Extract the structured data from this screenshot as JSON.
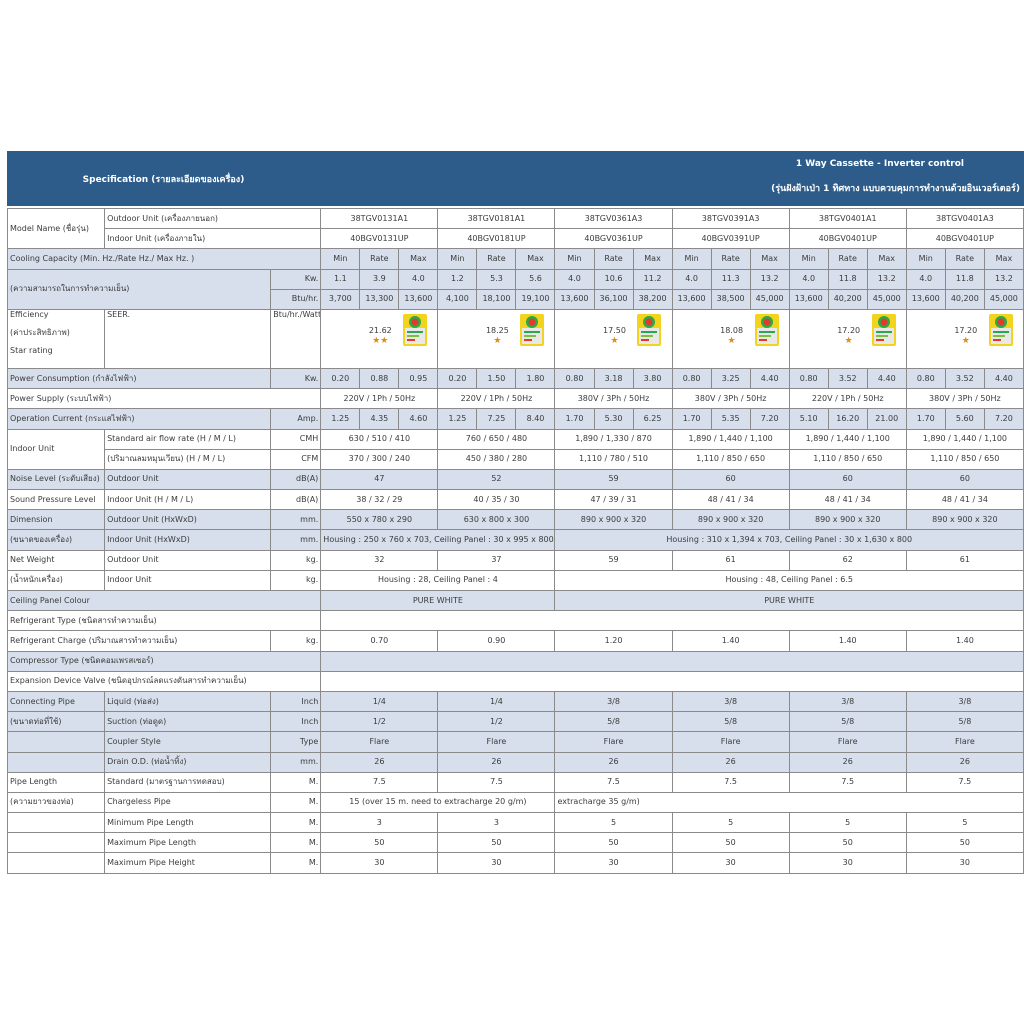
{
  "header": {
    "left": "Specification (รายละเอียดของเครื่อง)",
    "right_title": "1 Way Cassette - Inverter control",
    "right_subtitle": "(รุ่นฝังฝ้าเป่า 1 ทิศทาง แบบควบคุมการทำงานด้วยอินเวอร์เตอร์)"
  },
  "labels": {
    "model_name": "Model Name (ชื่อรุ่น)",
    "outdoor_unit_th": "Outdoor Unit (เครื่องภายนอก)",
    "indoor_unit_th": "Indoor Unit (เครื่องภายใน)",
    "cooling_capacity": "Cooling Capacity (Min. Hz./Rate Hz./ Max Hz. )",
    "cooling_capacity_th": "(ความสามารถในการทำความเย็น)",
    "kw": "Kw.",
    "btu": "Btu/hr.",
    "efficiency": "Efficiency",
    "efficiency_th": "(ค่าประสิทธิภาพ)",
    "star_rating": "Star rating",
    "seer": "SEER.",
    "btu_watt": "Btu/hr./Watt",
    "power_consumption": "Power Consumption (กำลังไฟฟ้า)",
    "power_supply": "Power Supply (ระบบไฟฟ้า)",
    "operation_current": "Operation Current (กระแสไฟฟ้า)",
    "amp": "Amp.",
    "indoor_unit": "Indoor Unit",
    "std_air_flow": "Standard air flow rate  (H / M / L)",
    "air_flow_th": "(ปริมาณลมหมุนเวียน) (H / M / L)",
    "cmh": "CMH",
    "cfm": "CFM",
    "noise_level": "Noise Level (ระดับเสียง)",
    "outdoor_unit": "Outdoor Unit",
    "dba": "dB(A)",
    "sound_pressure": "Sound Pressure Level",
    "indoor_hml": "Indoor Unit (H / M / L)",
    "dimension": "Dimension",
    "dimension_th": "(ขนาดของเครื่อง)",
    "outdoor_hxwxd": "Outdoor Unit (HxWxD)",
    "indoor_hxwxd": "Indoor Unit (HxWxD)",
    "mm": "mm.",
    "net_weight": "Net Weight",
    "net_weight_th": "(น้ำหนักเครื่อง)",
    "kg": "kg.",
    "ceiling_panel": "Ceiling Panel Colour",
    "refrigerant_type": "Refrigerant Type (ชนิดสารทำความเย็น)",
    "refrigerant_charge": "Refrigerant  Charge (ปริมาณสารทำความเย็น)",
    "compressor_type": "Compressor Type (ชนิดคอมเพรสเซอร์)",
    "expansion_valve": "Expansion Device Valve (ชนิดอุปกรณ์ลดแรงดันสารทำความเย็น)",
    "connecting_pipe": "Connecting Pipe",
    "connecting_pipe_th": "(ขนาดท่อที่ใช้)",
    "liquid": "Liquid (ท่อส่ง)",
    "suction": "Suction (ท่อดูด)",
    "coupler": "Coupler Style",
    "drain": "Drain O.D. (ท่อน้ำทิ้ง)",
    "inch": "Inch",
    "type": "Type",
    "pipe_length": "Pipe Length",
    "pipe_length_th": "(ความยาวของท่อ)",
    "standard": "Standard (มาตรฐานการทดสอบ)",
    "chargeless": "Chargeless Pipe",
    "min_pipe": "Minimum Pipe Length",
    "max_pipe": "Maximum Pipe Length",
    "max_height": "Maximum Pipe Height",
    "m": "M.",
    "min": "Min",
    "rate": "Rate",
    "max": "Max"
  },
  "models": [
    {
      "outdoor": "38TGV0131A1",
      "indoor": "40BGV0131UP",
      "kw": [
        "1.1",
        "3.9",
        "4.0"
      ],
      "btu": [
        "3,700",
        "13,300",
        "13,600"
      ],
      "seer": "21.62",
      "stars": "★★",
      "pc": [
        "0.20",
        "0.88",
        "0.95"
      ],
      "ps": "220V / 1Ph / 50Hz",
      "amp": [
        "1.25",
        "4.35",
        "4.60"
      ],
      "cmh": "630 / 510 / 410",
      "cfm": "370 / 300 / 240",
      "noise": "47",
      "spl": "38 / 32 / 29",
      "dim_out": "550 x 780 x 290",
      "weight": "32",
      "charge": "0.70",
      "liquid": "1/4",
      "suction": "1/2",
      "coupler": "Flare",
      "drain": "26",
      "std": "7.5",
      "min": "3",
      "max": "50",
      "height": "30"
    },
    {
      "outdoor": "38TGV0181A1",
      "indoor": "40BGV0181UP",
      "kw": [
        "1.2",
        "5.3",
        "5.6"
      ],
      "btu": [
        "4,100",
        "18,100",
        "19,100"
      ],
      "seer": "18.25",
      "stars": "★",
      "pc": [
        "0.20",
        "1.50",
        "1.80"
      ],
      "ps": "220V / 1Ph / 50Hz",
      "amp": [
        "1.25",
        "7.25",
        "8.40"
      ],
      "cmh": "760 / 650 / 480",
      "cfm": "450 / 380 / 280",
      "noise": "52",
      "spl": "40 / 35 / 30",
      "dim_out": "630 x 800 x 300",
      "weight": "37",
      "charge": "0.90",
      "liquid": "1/4",
      "suction": "1/2",
      "coupler": "Flare",
      "drain": "26",
      "std": "7.5",
      "min": "3",
      "max": "50",
      "height": "30"
    },
    {
      "outdoor": "38TGV0361A3",
      "indoor": "40BGV0361UP",
      "kw": [
        "4.0",
        "10.6",
        "11.2"
      ],
      "btu": [
        "13,600",
        "36,100",
        "38,200"
      ],
      "seer": "17.50",
      "stars": "★",
      "pc": [
        "0.80",
        "3.18",
        "3.80"
      ],
      "ps": "380V / 3Ph / 50Hz",
      "amp": [
        "1.70",
        "5.30",
        "6.25"
      ],
      "cmh": "1,890 / 1,330 / 870",
      "cfm": "1,110 / 780 / 510",
      "noise": "59",
      "spl": "47 / 39 / 31",
      "dim_out": "890 x 900 x 320",
      "weight": "59",
      "charge": "1.20",
      "liquid": "3/8",
      "suction": "5/8",
      "coupler": "Flare",
      "drain": "26",
      "std": "7.5",
      "min": "5",
      "max": "50",
      "height": "30"
    },
    {
      "outdoor": "38TGV0391A3",
      "indoor": "40BGV0391UP",
      "kw": [
        "4.0",
        "11.3",
        "13.2"
      ],
      "btu": [
        "13,600",
        "38,500",
        "45,000"
      ],
      "seer": "18.08",
      "stars": "★",
      "pc": [
        "0.80",
        "3.25",
        "4.40"
      ],
      "ps": "380V / 3Ph / 50Hz",
      "amp": [
        "1.70",
        "5.35",
        "7.20"
      ],
      "cmh": "1,890 / 1,440 / 1,100",
      "cfm": "1,110 / 850 / 650",
      "noise": "60",
      "spl": "48 / 41 / 34",
      "dim_out": "890 x 900 x 320",
      "weight": "61",
      "charge": "1.40",
      "liquid": "3/8",
      "suction": "5/8",
      "coupler": "Flare",
      "drain": "26",
      "std": "7.5",
      "min": "5",
      "max": "50",
      "height": "30"
    },
    {
      "outdoor": "38TGV0401A1",
      "indoor": "40BGV0401UP",
      "kw": [
        "4.0",
        "11.8",
        "13.2"
      ],
      "btu": [
        "13,600",
        "40,200",
        "45,000"
      ],
      "seer": "17.20",
      "stars": "★",
      "pc": [
        "0.80",
        "3.52",
        "4.40"
      ],
      "ps": "220V / 1Ph / 50Hz",
      "amp": [
        "5.10",
        "16.20",
        "21.00"
      ],
      "cmh": "1,890 / 1,440 / 1,100",
      "cfm": "1,110 / 850 / 650",
      "noise": "60",
      "spl": "48 / 41 / 34",
      "dim_out": "890 x 900 x 320",
      "weight": "62",
      "charge": "1.40",
      "liquid": "3/8",
      "suction": "5/8",
      "coupler": "Flare",
      "drain": "26",
      "std": "7.5",
      "min": "5",
      "max": "50",
      "height": "30"
    },
    {
      "outdoor": "38TGV0401A3",
      "indoor": "40BGV0401UP",
      "kw": [
        "4.0",
        "11.8",
        "13.2"
      ],
      "btu": [
        "13,600",
        "40,200",
        "45,000"
      ],
      "seer": "17.20",
      "stars": "★",
      "pc": [
        "0.80",
        "3.52",
        "4.40"
      ],
      "ps": "380V / 3Ph / 50Hz",
      "amp": [
        "1.70",
        "5.60",
        "7.20"
      ],
      "cmh": "1,890 / 1,440 / 1,100",
      "cfm": "1,110 / 850 / 650",
      "noise": "60",
      "spl": "48 / 41 / 34",
      "dim_out": "890 x 900 x 320",
      "weight": "61",
      "charge": "1.40",
      "liquid": "3/8",
      "suction": "5/8",
      "coupler": "Flare",
      "drain": "26",
      "std": "7.5",
      "min": "5",
      "max": "50",
      "height": "30"
    }
  ],
  "spans": {
    "dim_indoor_a": "Housing : 250 x 760 x 703,  Ceiling Panel : 30 x 995 x 800",
    "dim_indoor_b": "Housing : 310 x 1,394 x 703,  Ceiling Panel : 30 x 1,630 x 800",
    "weight_indoor_a": "Housing : 28,  Ceiling Panel : 4",
    "weight_indoor_b": "Housing : 48,  Ceiling Panel : 6.5",
    "panel_a": "PURE WHITE",
    "panel_b": "PURE WHITE",
    "chargeless_a": "15 (over 15 m. need to  extracharge 20 g/m)",
    "chargeless_b": "extracharge 35 g/m)"
  },
  "colors": {
    "header_bg": "#2d5c8b",
    "shade": "#d6dfeb",
    "star": "#e08a1a"
  }
}
